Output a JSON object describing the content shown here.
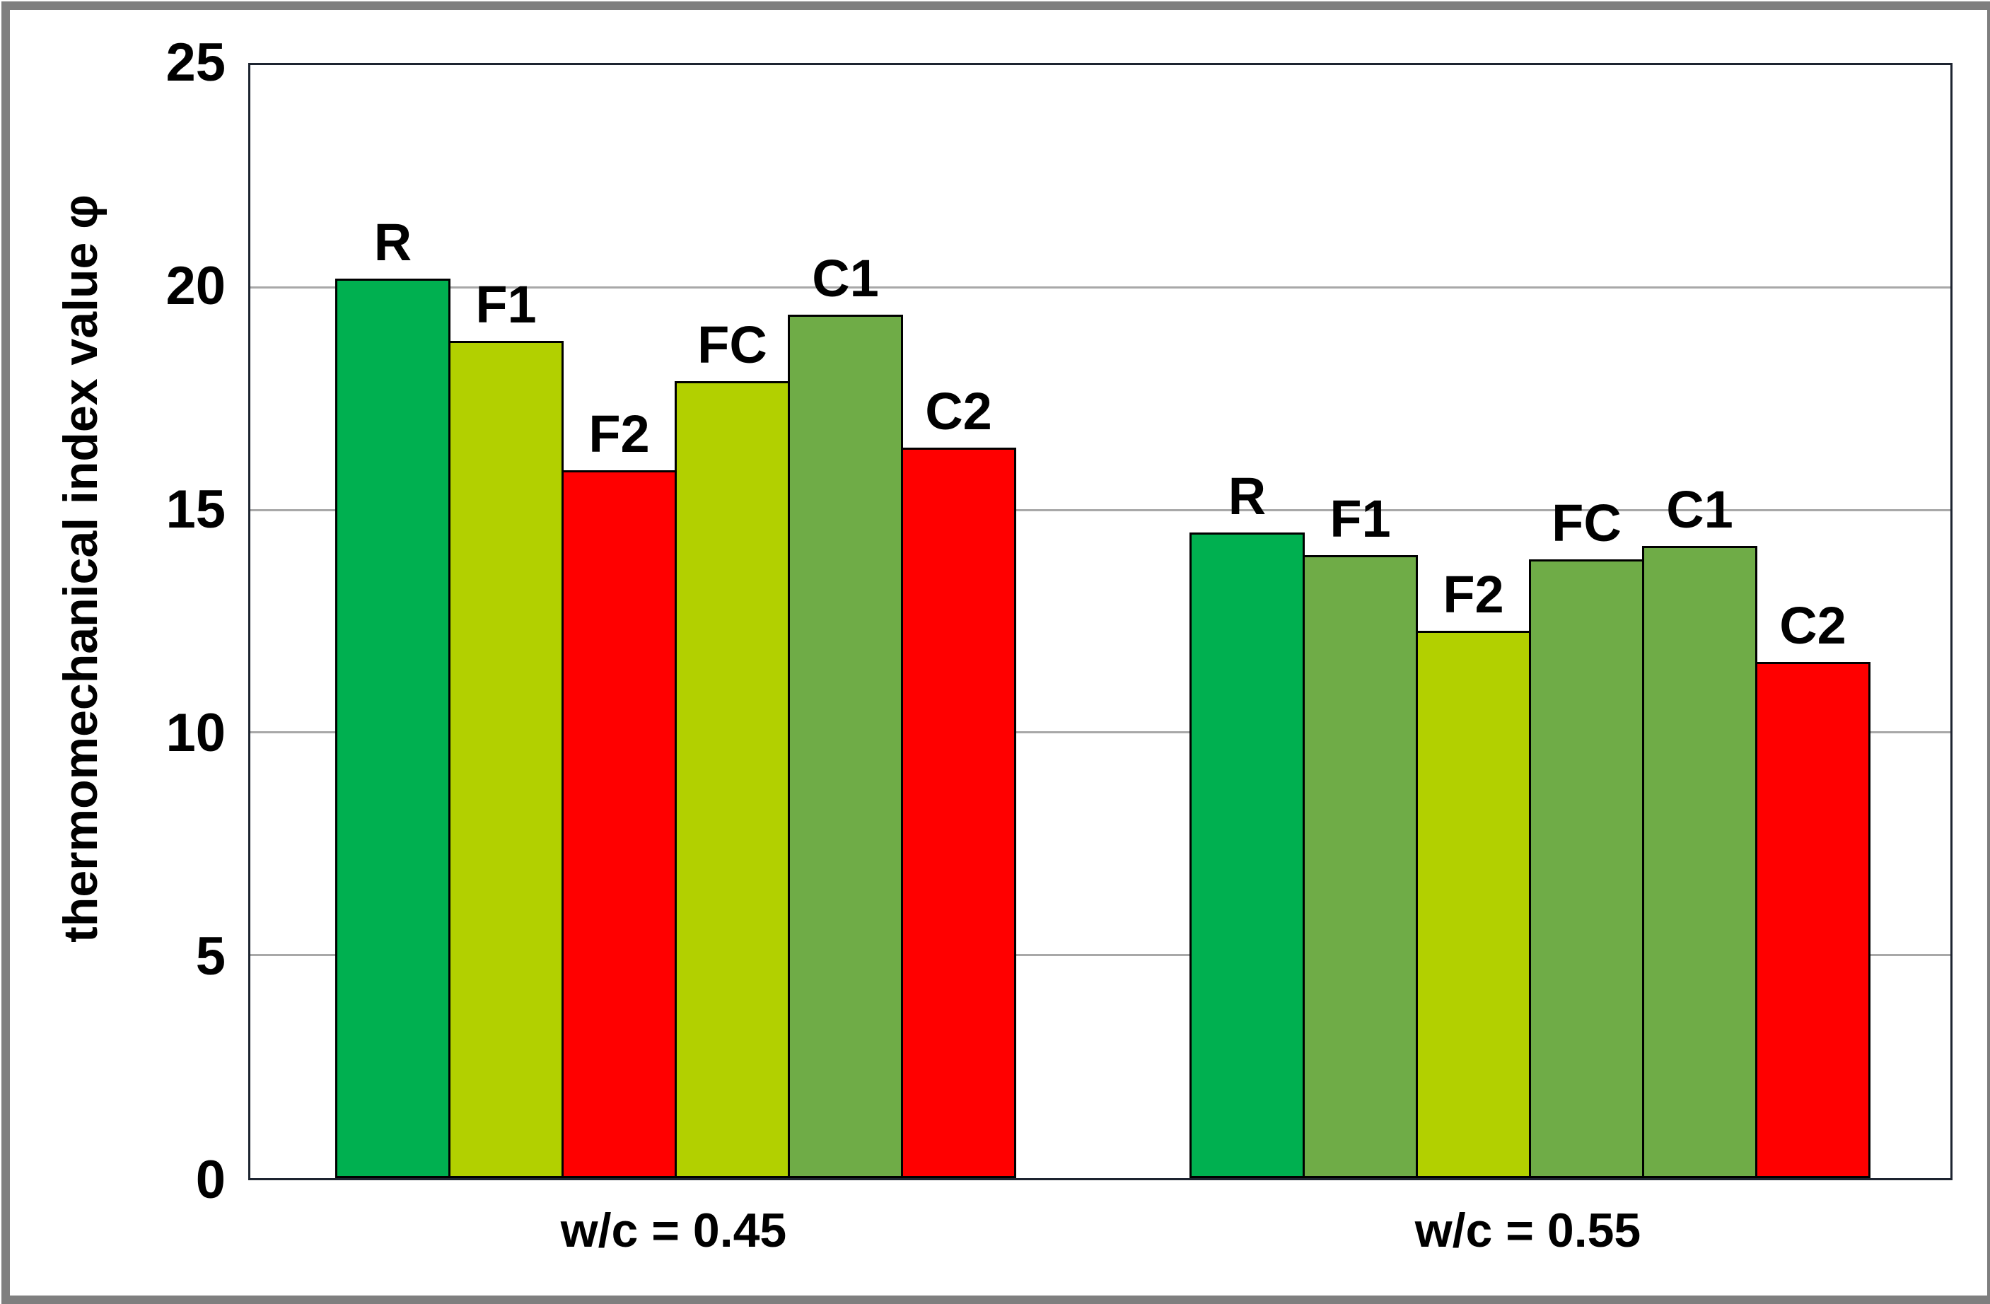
{
  "chart_data": {
    "type": "bar",
    "title": "",
    "xlabel": "",
    "ylabel": "thermomechanical index value φ",
    "ylim": [
      0,
      25
    ],
    "yticks": [
      0,
      5,
      10,
      15,
      20,
      25
    ],
    "grid": "horizontal",
    "legend_position": "none",
    "bar_outline_color": "#000000",
    "colors": {
      "reference_green": "#00B050",
      "yellow_green": "#B2D000",
      "moss_green": "#6FAC47",
      "red": "#FF0000"
    },
    "groups": [
      {
        "label": "w/c = 0.45",
        "bars": [
          {
            "name": "R",
            "value": 20.2,
            "color": "#00B050"
          },
          {
            "name": "F1",
            "value": 18.8,
            "color": "#B2D000"
          },
          {
            "name": "F2",
            "value": 15.9,
            "color": "#FF0000"
          },
          {
            "name": "FC",
            "value": 17.9,
            "color": "#B2D000"
          },
          {
            "name": "C1",
            "value": 19.4,
            "color": "#6FAC47"
          },
          {
            "name": "C2",
            "value": 16.4,
            "color": "#FF0000"
          }
        ]
      },
      {
        "label": "w/c = 0.55",
        "bars": [
          {
            "name": "R",
            "value": 14.5,
            "color": "#00B050"
          },
          {
            "name": "F1",
            "value": 14.0,
            "color": "#6FAC47"
          },
          {
            "name": "F2",
            "value": 12.3,
            "color": "#B2D000"
          },
          {
            "name": "FC",
            "value": 13.9,
            "color": "#6FAC47"
          },
          {
            "name": "C1",
            "value": 14.2,
            "color": "#6FAC47"
          },
          {
            "name": "C2",
            "value": 11.6,
            "color": "#FF0000"
          }
        ]
      }
    ]
  }
}
